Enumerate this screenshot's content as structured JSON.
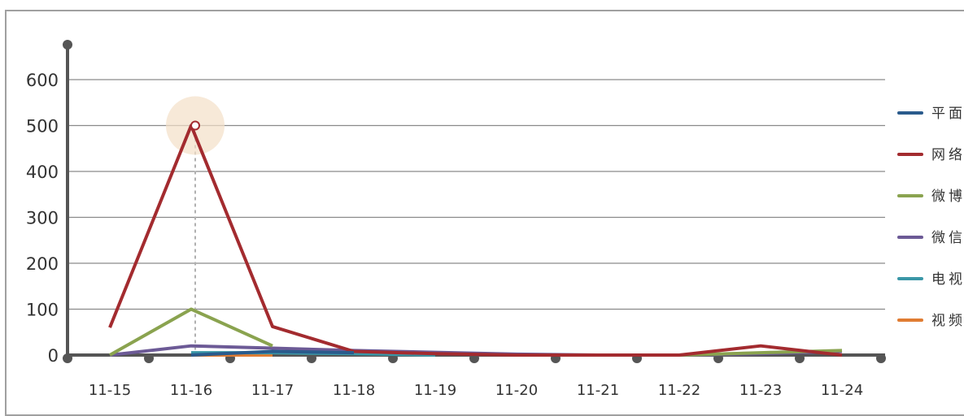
{
  "chart_data": {
    "type": "line",
    "categories": [
      "11-15",
      "11-16",
      "11-17",
      "11-18",
      "11-19",
      "11-20",
      "11-21",
      "11-22",
      "11-23",
      "11-24"
    ],
    "ylim": [
      0,
      600
    ],
    "yticks": [
      0,
      100,
      200,
      300,
      400,
      500,
      600
    ],
    "grid": true,
    "legend_position": "right",
    "highlight": {
      "category": "11-16",
      "series": "网络"
    },
    "series": [
      {
        "name": "平面",
        "color": "#2a5b8c",
        "values": [
          null,
          0,
          8,
          5,
          null,
          null,
          null,
          null,
          null,
          null
        ]
      },
      {
        "name": "网络",
        "color": "#a32b2f",
        "values": [
          60,
          500,
          62,
          8,
          3,
          0,
          0,
          0,
          20,
          0
        ]
      },
      {
        "name": "微博",
        "color": "#8aa34f",
        "values": [
          0,
          100,
          20,
          null,
          null,
          null,
          null,
          0,
          5,
          10
        ]
      },
      {
        "name": "微信",
        "color": "#6c5a96",
        "values": [
          0,
          20,
          15,
          10,
          6,
          2,
          0,
          0,
          3,
          8
        ]
      },
      {
        "name": "电视",
        "color": "#3a97a7",
        "values": [
          null,
          5,
          5,
          3,
          0,
          null,
          null,
          null,
          null,
          null
        ]
      },
      {
        "name": "视频",
        "color": "#e07c32",
        "values": [
          null,
          0,
          0,
          null,
          null,
          null,
          null,
          null,
          null,
          null
        ]
      }
    ]
  }
}
